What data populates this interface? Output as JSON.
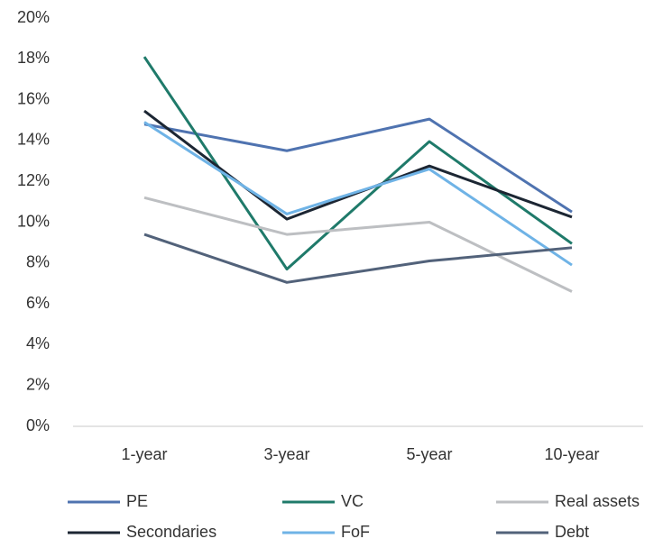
{
  "chart_data": {
    "type": "line",
    "categories": [
      "1-year",
      "3-year",
      "5-year",
      "10-year"
    ],
    "series": [
      {
        "name": "PE",
        "color": "#4f73b0",
        "values": [
          14.8,
          13.5,
          15.05,
          10.5
        ]
      },
      {
        "name": "VC",
        "color": "#1f7a6a",
        "values": [
          18.1,
          7.7,
          13.95,
          8.95
        ]
      },
      {
        "name": "Real assets",
        "color": "#bdbfc2",
        "values": [
          11.2,
          9.4,
          10.0,
          6.6
        ]
      },
      {
        "name": "Secondaries",
        "color": "#1c2633",
        "values": [
          15.45,
          10.15,
          12.75,
          10.25
        ]
      },
      {
        "name": "FoF",
        "color": "#6fb3e6",
        "values": [
          14.9,
          10.4,
          12.6,
          7.9
        ]
      },
      {
        "name": "Debt",
        "color": "#52627a",
        "values": [
          9.4,
          7.05,
          8.1,
          8.75
        ]
      }
    ],
    "ylim": [
      0,
      20
    ],
    "yticks": [
      {
        "value": 0,
        "label": "0%"
      },
      {
        "value": 2,
        "label": "2%"
      },
      {
        "value": 4,
        "label": "4%"
      },
      {
        "value": 6,
        "label": "6%"
      },
      {
        "value": 8,
        "label": "8%"
      },
      {
        "value": 10,
        "label": "10%"
      },
      {
        "value": 12,
        "label": "12%"
      },
      {
        "value": 14,
        "label": "14%"
      },
      {
        "value": 16,
        "label": "16%"
      },
      {
        "value": 18,
        "label": "18%"
      },
      {
        "value": 20,
        "label": "20%"
      }
    ],
    "grid": false,
    "legend": "bottom"
  }
}
